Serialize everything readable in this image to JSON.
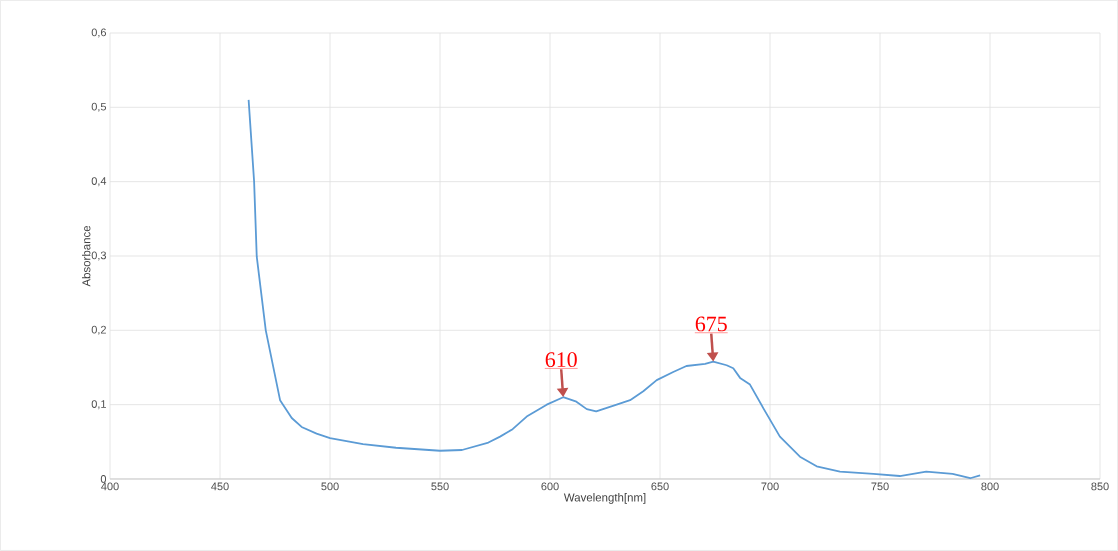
{
  "chart_data": {
    "type": "line",
    "xlabel": "Wavelength[nm]",
    "ylabel": "Absorbance",
    "x": [
      463,
      465.5,
      466.7,
      470.8,
      477.3,
      482.6,
      487.1,
      493.9,
      500,
      515,
      530,
      550,
      560,
      572,
      577.3,
      583,
      589.4,
      598.5,
      606,
      612,
      616.7,
      621,
      630.3,
      636.4,
      642.4,
      648.5,
      656,
      662,
      670.5,
      674.2,
      680.3,
      683.3,
      686.4,
      690.9,
      697,
      704.5,
      713.6,
      721.2,
      731.8,
      747,
      759,
      771,
      783,
      791,
      795.5
    ],
    "series": [
      {
        "color": "#5b9bd5",
        "values": [
          0.51,
          0.4,
          0.299,
          0.2,
          0.106,
          0.082,
          0.07,
          0.061,
          0.055,
          0.047,
          0.042,
          0.038,
          0.039,
          0.049,
          0.057,
          0.067,
          0.084,
          0.1,
          0.11,
          0.104,
          0.094,
          0.091,
          0.1,
          0.106,
          0.118,
          0.133,
          0.144,
          0.152,
          0.155,
          0.158,
          0.153,
          0.149,
          0.136,
          0.127,
          0.095,
          0.057,
          0.03,
          0.017,
          0.01,
          0.007,
          0.004,
          0.01,
          0.007,
          0.001,
          0.005
        ]
      }
    ],
    "xlim": [
      400,
      850
    ],
    "xticks": [
      400,
      450,
      500,
      550,
      600,
      650,
      700,
      750,
      800,
      850
    ],
    "ylim": [
      0,
      0.6
    ],
    "yticks": [
      {
        "value": 0,
        "label": "0"
      },
      {
        "value": 0.1,
        "label": "0,1"
      },
      {
        "value": 0.2,
        "label": "0,2"
      },
      {
        "value": 0.3,
        "label": "0,3"
      },
      {
        "value": 0.4,
        "label": "0,4"
      },
      {
        "value": 0.5,
        "label": "0,5"
      },
      {
        "value": 0.6,
        "label": "0,6"
      }
    ],
    "grid": true,
    "marker": "none",
    "line_style": "solid",
    "annotations": [
      {
        "text": "610",
        "x": 606,
        "y": 0.11
      },
      {
        "text": "675",
        "x": 674.2,
        "y": 0.158
      }
    ]
  }
}
